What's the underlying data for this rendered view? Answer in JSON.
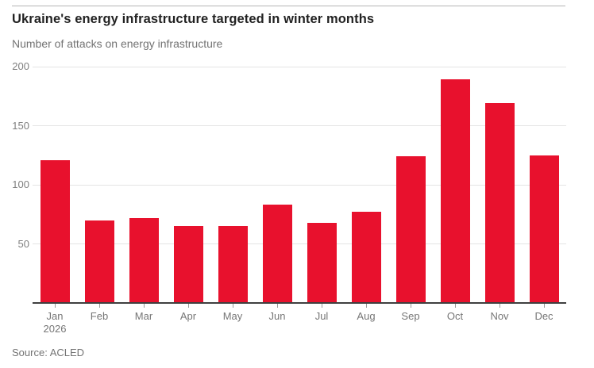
{
  "header": {
    "title": "Ukraine's energy infrastructure targeted in winter months",
    "subtitle": "Number of attacks on energy infrastructure"
  },
  "footer": {
    "source": "Source: ACLED"
  },
  "colors": {
    "bar": "#e8112d",
    "gridline": "#e4e4e4",
    "axis_baseline": "#3f3f3f",
    "tick": "#9a9a9a",
    "tick_label": "#767676",
    "title_text": "#222222",
    "subtitle_text": "#737373",
    "top_rule": "#b5b5b5"
  },
  "chart_data": {
    "type": "bar",
    "title": "Ukraine's energy infrastructure targeted in winter months",
    "ylabel": "Number of attacks on energy infrastructure",
    "categories": [
      "Jan",
      "Feb",
      "Mar",
      "Apr",
      "May",
      "Jun",
      "Jul",
      "Aug",
      "Sep",
      "Oct",
      "Nov",
      "Dec"
    ],
    "category_sub_labels": [
      "2026",
      "",
      "",
      "",
      "",
      "",
      "",
      "",
      "",
      "",
      "",
      ""
    ],
    "values": [
      121,
      70,
      72,
      65,
      65,
      83,
      68,
      77,
      124,
      189,
      169,
      125
    ],
    "series_name": "Attacks on energy infrastructure",
    "ylim": [
      0,
      200
    ],
    "yticks": [
      50,
      100,
      150,
      200
    ],
    "grid": "horizontal",
    "legend": "none",
    "xlabel": ""
  }
}
